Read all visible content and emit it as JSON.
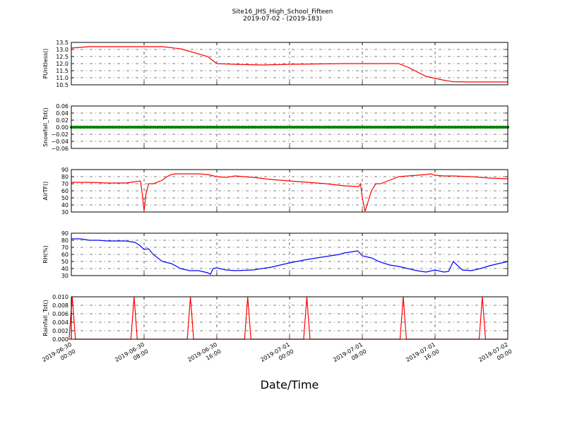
{
  "figure": {
    "title_line1": "Site16_JHS_High_School_Fifteen",
    "title_line2": "2019-07-02 - (2019-183)",
    "xlabel": "Date/Time"
  },
  "chart_data": [
    {
      "type": "line",
      "panel": "PUnitless",
      "ylabel": "PUnitless()",
      "ylim": [
        10.5,
        13.5
      ],
      "yticks": [
        "13.5",
        "13.0",
        "12.5",
        "12.0",
        "11.5",
        "11.0",
        "10.5"
      ],
      "grid": true,
      "series": [
        {
          "color": "#ff0000",
          "x_hours": [
            0,
            2,
            8,
            10,
            12,
            15,
            16,
            18,
            21,
            24,
            30,
            36,
            37,
            39,
            41,
            42,
            44,
            46,
            48
          ],
          "y": [
            13.1,
            13.2,
            13.2,
            13.2,
            13.05,
            12.5,
            12.0,
            11.95,
            11.9,
            11.95,
            12.0,
            12.0,
            11.75,
            11.1,
            10.82,
            10.72,
            10.7,
            10.7,
            10.7
          ]
        }
      ]
    },
    {
      "type": "scatter",
      "panel": "Snowfall_Tot",
      "ylabel": "Snowfall_Tot()",
      "ylim": [
        -0.06,
        0.06
      ],
      "yticks": [
        "0.06",
        "0.04",
        "0.02",
        "0.00",
        "−0.02",
        "−0.04",
        "−0.06"
      ],
      "grid": true,
      "series": [
        {
          "color": "#008000",
          "x_range_hours": [
            0,
            48
          ],
          "step_hours": 0.25,
          "constant_value": 0.0
        }
      ]
    },
    {
      "type": "line",
      "panel": "AirTF",
      "ylabel": "AirTF()",
      "ylim": [
        30,
        90
      ],
      "yticks": [
        "90",
        "80",
        "70",
        "60",
        "50",
        "40",
        "30"
      ],
      "grid": true,
      "series": [
        {
          "color": "#ff0000",
          "x_hours": [
            0,
            2,
            4,
            6,
            7.6,
            7.8,
            8.0,
            8.2,
            8.5,
            9,
            10,
            10.5,
            11,
            11.5,
            12,
            14,
            15,
            16,
            17,
            18,
            19,
            20,
            22,
            24,
            26,
            28,
            30,
            31.6,
            31.8,
            32.0,
            32.3,
            33,
            33.5,
            34,
            35,
            36,
            38,
            39,
            39.5,
            40,
            41,
            42,
            44,
            46,
            48
          ],
          "y": [
            72,
            72,
            71,
            71,
            74,
            56,
            32,
            55,
            70,
            70,
            75,
            80,
            83,
            84,
            84,
            84,
            83,
            80,
            79,
            81,
            80,
            79,
            76,
            74,
            72,
            70,
            67,
            66,
            70,
            50,
            31,
            60,
            70,
            70,
            75,
            80,
            82,
            83,
            84,
            82,
            81,
            81,
            80,
            78,
            77
          ]
        }
      ]
    },
    {
      "type": "line",
      "panel": "RH",
      "ylabel": "RH(%)",
      "ylim": [
        30,
        90
      ],
      "yticks": [
        "90",
        "80",
        "70",
        "60",
        "50",
        "40",
        "30"
      ],
      "grid": true,
      "series": [
        {
          "color": "#0000ff",
          "x_hours": [
            0,
            1,
            2,
            3,
            4,
            5,
            6,
            7,
            7.5,
            8,
            8.5,
            9,
            10,
            11,
            12,
            13,
            14,
            15,
            15.3,
            15.6,
            16,
            17,
            18,
            20,
            22,
            24,
            26,
            28,
            29.5,
            30,
            31.5,
            32,
            33,
            34,
            35,
            36,
            37,
            38,
            39,
            40,
            41,
            41.5,
            42,
            43,
            44,
            45,
            46,
            47,
            48
          ],
          "y": [
            82,
            82,
            80,
            80,
            79,
            79,
            79,
            77,
            73,
            67,
            68,
            60,
            50,
            47,
            40,
            37,
            37,
            34,
            32,
            40,
            41,
            38,
            37,
            38,
            42,
            48,
            53,
            57,
            60,
            62,
            65,
            58,
            55,
            49,
            45,
            43,
            40,
            37,
            35,
            38,
            35,
            36,
            50,
            38,
            37,
            40,
            44,
            47,
            50
          ]
        }
      ]
    },
    {
      "type": "line",
      "panel": "Rainfall_Tot",
      "ylabel": "Rainfall_Tot()",
      "ylim": [
        0.0,
        0.01
      ],
      "yticks": [
        "0.010",
        "0.008",
        "0.006",
        "0.004",
        "0.002",
        "0.000"
      ],
      "grid": true,
      "series": [
        {
          "color": "#ff0000",
          "spike_hours": [
            0.1,
            6.9,
            13.1,
            19.4,
            25.9,
            36.5,
            45.2
          ],
          "spike_value": 0.01,
          "base_value": 0.0
        }
      ]
    }
  ],
  "x_axis": {
    "tick_labels": [
      [
        "2019-06-30",
        "00:00"
      ],
      [
        "2019-06-30",
        "08:00"
      ],
      [
        "2019-06-30",
        "16:00"
      ],
      [
        "2019-07-01",
        "00:00"
      ],
      [
        "2019-07-01",
        "08:00"
      ],
      [
        "2019-07-01",
        "16:00"
      ],
      [
        "2019-07-02",
        "00:00"
      ]
    ]
  }
}
